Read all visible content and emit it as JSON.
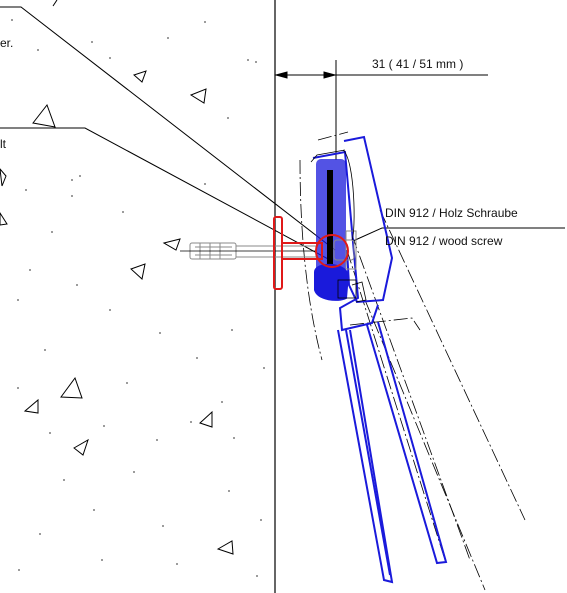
{
  "labels": {
    "fragment_top": "er.",
    "fragment_mid": "lt",
    "dimension": "31 ( 41 / 51 mm )",
    "callout_de": "DIN 912 / Holz Schraube",
    "callout_en": "DIN 912 /  wood screw"
  },
  "colors": {
    "line": "#000000",
    "frame": "#1a1adb",
    "bracket": "#e01919",
    "hardware": "#8a8a8a",
    "dots": "#555555"
  }
}
